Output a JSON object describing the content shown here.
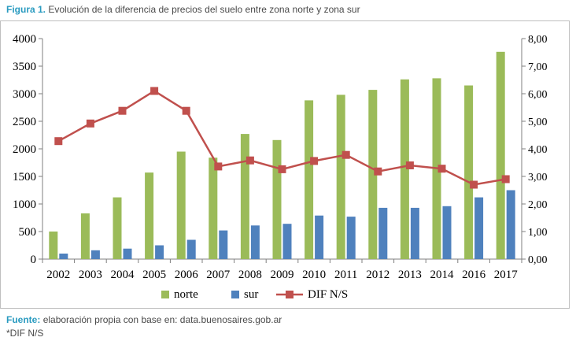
{
  "caption": {
    "label": "Figura 1.",
    "text": "Evolución de la diferencia de precios del suelo entre zona norte y zona sur"
  },
  "footer": {
    "source_label": "Fuente:",
    "source_text": "elaboración propia con base en: data.buenosaires.gob.ar",
    "note": "*DIF N/S"
  },
  "colors": {
    "norte": "#9bbb59",
    "sur": "#4f81bd",
    "dif": "#c0504d"
  },
  "chart_data": {
    "type": "bar",
    "categories": [
      "2002",
      "2003",
      "2004",
      "2005",
      "2006",
      "2007",
      "2008",
      "2009",
      "2010",
      "2011",
      "2012",
      "2013",
      "2014",
      "2016",
      "2017"
    ],
    "series": [
      {
        "name": "norte",
        "type": "bar",
        "axis": "left",
        "values": [
          500,
          830,
          1120,
          1570,
          1950,
          1840,
          2270,
          2160,
          2880,
          2980,
          3070,
          3260,
          3280,
          3150,
          3760
        ]
      },
      {
        "name": "sur",
        "type": "bar",
        "axis": "left",
        "values": [
          100,
          160,
          190,
          250,
          350,
          520,
          610,
          640,
          790,
          770,
          930,
          930,
          960,
          1120,
          1250
        ]
      },
      {
        "name": "DIF N/S",
        "type": "line",
        "axis": "right",
        "values": [
          4.28,
          4.92,
          5.38,
          6.1,
          5.38,
          3.36,
          3.58,
          3.26,
          3.56,
          3.78,
          3.18,
          3.4,
          3.28,
          2.7,
          2.9
        ]
      }
    ],
    "y_left": {
      "min": 0,
      "max": 4000,
      "ticks": [
        "0",
        "500",
        "1000",
        "1500",
        "2000",
        "2500",
        "3000",
        "3500",
        "4000"
      ]
    },
    "y_right": {
      "min": 0,
      "max": 8,
      "ticks": [
        "0,00",
        "1,00",
        "2,00",
        "3,00",
        "4,00",
        "5,00",
        "6,00",
        "7,00",
        "8,00"
      ]
    },
    "grid": false,
    "legend": "bottom"
  }
}
